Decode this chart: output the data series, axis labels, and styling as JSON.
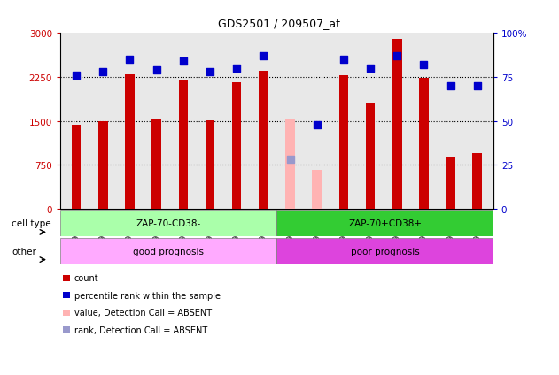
{
  "title": "GDS2501 / 209507_at",
  "samples": [
    "GSM99339",
    "GSM99340",
    "GSM99341",
    "GSM99342",
    "GSM99343",
    "GSM99344",
    "GSM99345",
    "GSM99346",
    "GSM99347",
    "GSM99348",
    "GSM99349",
    "GSM99350",
    "GSM99351",
    "GSM99352",
    "GSM99353",
    "GSM99354"
  ],
  "count_values": [
    1430,
    1490,
    2300,
    1540,
    2200,
    1510,
    2160,
    2350,
    1520,
    660,
    2280,
    1790,
    2900,
    2240,
    870,
    950
  ],
  "rank_values": [
    76,
    78,
    85,
    79,
    84,
    78,
    80,
    87,
    28,
    48,
    85,
    80,
    87,
    82,
    70,
    70
  ],
  "absent_count": [
    null,
    null,
    null,
    null,
    null,
    null,
    null,
    null,
    1520,
    660,
    null,
    null,
    null,
    null,
    null,
    null
  ],
  "absent_rank": [
    null,
    null,
    null,
    null,
    null,
    null,
    null,
    null,
    28,
    null,
    null,
    null,
    null,
    null,
    null,
    null
  ],
  "bar_color_normal": "#cc0000",
  "bar_color_absent": "#ffb3b3",
  "dot_color_normal": "#0000cc",
  "dot_color_absent": "#9999cc",
  "ylim_left": [
    0,
    3000
  ],
  "ylim_right": [
    0,
    100
  ],
  "yticks_left": [
    0,
    750,
    1500,
    2250,
    3000
  ],
  "ytick_labels_left": [
    "0",
    "750",
    "1500",
    "2250",
    "3000"
  ],
  "ytick_labels_right": [
    "0",
    "25",
    "50",
    "75",
    "100%"
  ],
  "grid_values": [
    750,
    1500,
    2250
  ],
  "cell_type_groups": [
    {
      "label": "ZAP-70-CD38-",
      "start": 0,
      "end": 8,
      "color": "#aaffaa"
    },
    {
      "label": "ZAP-70+CD38+",
      "start": 8,
      "end": 16,
      "color": "#33cc33"
    }
  ],
  "other_groups": [
    {
      "label": "good prognosis",
      "start": 0,
      "end": 8,
      "color": "#ffaaff"
    },
    {
      "label": "poor prognosis",
      "start": 8,
      "end": 16,
      "color": "#dd44dd"
    }
  ],
  "cell_type_label": "cell type",
  "other_label": "other",
  "legend_items": [
    {
      "label": "count",
      "color": "#cc0000"
    },
    {
      "label": "percentile rank within the sample",
      "color": "#0000cc"
    },
    {
      "label": "value, Detection Call = ABSENT",
      "color": "#ffb3b3"
    },
    {
      "label": "rank, Detection Call = ABSENT",
      "color": "#9999cc"
    }
  ],
  "bar_width": 0.35,
  "dot_size": 40,
  "dot_marker": "s",
  "bg_color": "#e8e8e8"
}
